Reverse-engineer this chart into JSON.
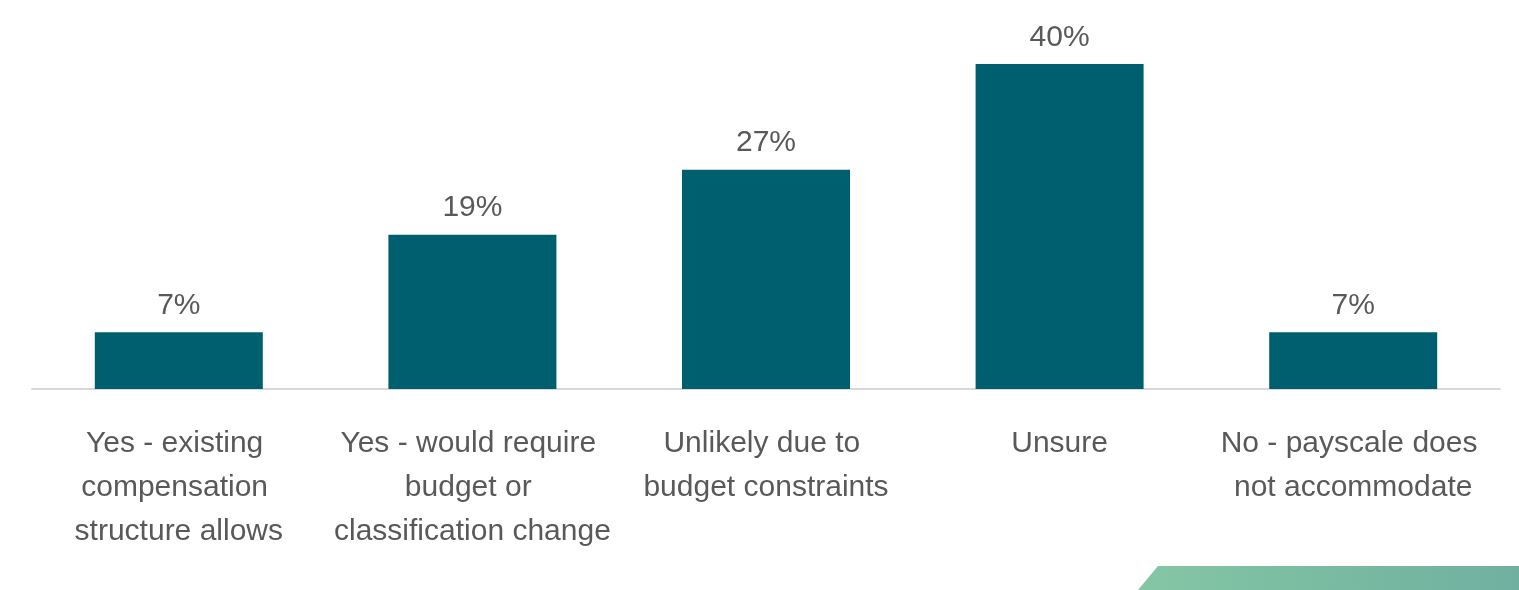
{
  "chart_data": {
    "type": "bar",
    "categories": [
      "Yes - existing compensation structure allows",
      "Yes - would require budget or classification change",
      "Unlikely due to budget constraints",
      "Unsure",
      "No - payscale does not accommodate"
    ],
    "values": [
      7,
      19,
      27,
      40,
      7
    ],
    "value_labels": [
      "7%",
      "19%",
      "27%",
      "40%",
      "7%"
    ],
    "color": "#005f6e"
  }
}
